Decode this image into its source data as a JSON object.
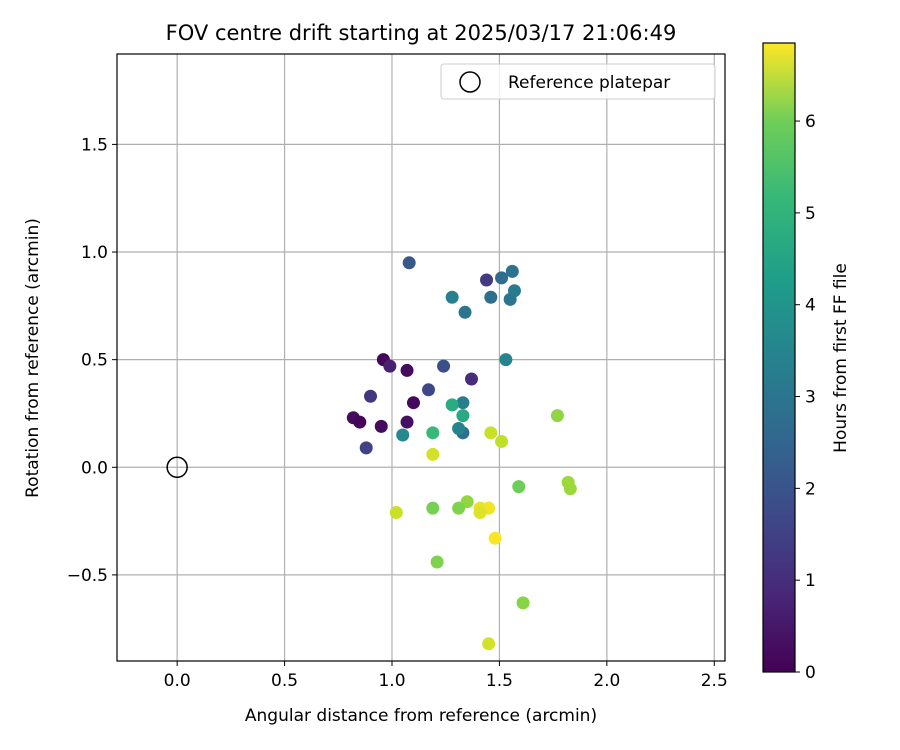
{
  "chart_data": {
    "type": "scatter",
    "title": "FOV centre drift starting at 2025/03/17 21:06:49",
    "xlabel": "Angular distance from reference (arcmin)",
    "ylabel": "Rotation from reference (arcmin)",
    "xlim": [
      -0.28,
      2.55
    ],
    "ylim": [
      -0.9,
      1.92
    ],
    "xticks": [
      "0.0",
      "0.5",
      "1.0",
      "1.5",
      "2.0",
      "2.5"
    ],
    "xtick_values": [
      0,
      0.5,
      1.0,
      1.5,
      2.0,
      2.5
    ],
    "yticks": [
      "−0.5",
      "0.0",
      "0.5",
      "1.0",
      "1.5"
    ],
    "ytick_values": [
      -0.5,
      0,
      0.5,
      1.0,
      1.5
    ],
    "grid": true,
    "legend_position": "top-right",
    "legend_label": "Reference platepar",
    "reference_point": {
      "x": 0.0,
      "y": 0.0
    },
    "colorbar": {
      "label": "Hours from first FF file",
      "min": 0,
      "max": 6.85,
      "ticks": [
        "0",
        "1",
        "2",
        "3",
        "4",
        "5",
        "6"
      ],
      "tick_values": [
        0,
        1,
        2,
        3,
        4,
        5,
        6
      ],
      "colormap": "viridis"
    },
    "points": [
      {
        "x": 0.96,
        "y": 0.5,
        "h": 0.1
      },
      {
        "x": 0.82,
        "y": 0.23,
        "h": 0.2
      },
      {
        "x": 0.85,
        "y": 0.21,
        "h": 0.1
      },
      {
        "x": 0.95,
        "y": 0.19,
        "h": 0.2
      },
      {
        "x": 1.07,
        "y": 0.45,
        "h": 0.2
      },
      {
        "x": 1.1,
        "y": 0.3,
        "h": 0.15
      },
      {
        "x": 1.07,
        "y": 0.21,
        "h": 0.3
      },
      {
        "x": 0.99,
        "y": 0.47,
        "h": 0.6
      },
      {
        "x": 0.9,
        "y": 0.33,
        "h": 1.1
      },
      {
        "x": 0.88,
        "y": 0.09,
        "h": 1.4
      },
      {
        "x": 1.37,
        "y": 0.41,
        "h": 0.9
      },
      {
        "x": 1.17,
        "y": 0.36,
        "h": 1.5
      },
      {
        "x": 1.24,
        "y": 0.47,
        "h": 1.7
      },
      {
        "x": 1.08,
        "y": 0.95,
        "h": 1.9
      },
      {
        "x": 1.44,
        "y": 0.87,
        "h": 1.2
      },
      {
        "x": 1.51,
        "y": 0.88,
        "h": 2.4
      },
      {
        "x": 1.56,
        "y": 0.91,
        "h": 2.6
      },
      {
        "x": 1.46,
        "y": 0.79,
        "h": 2.5
      },
      {
        "x": 1.57,
        "y": 0.82,
        "h": 2.8
      },
      {
        "x": 1.55,
        "y": 0.78,
        "h": 2.7
      },
      {
        "x": 1.28,
        "y": 0.79,
        "h": 3.0
      },
      {
        "x": 1.34,
        "y": 0.72,
        "h": 2.7
      },
      {
        "x": 1.53,
        "y": 0.5,
        "h": 3.1
      },
      {
        "x": 1.33,
        "y": 0.3,
        "h": 2.9
      },
      {
        "x": 1.33,
        "y": 0.16,
        "h": 2.5
      },
      {
        "x": 1.31,
        "y": 0.18,
        "h": 3.1
      },
      {
        "x": 1.05,
        "y": 0.15,
        "h": 3.2
      },
      {
        "x": 1.28,
        "y": 0.29,
        "h": 4.2
      },
      {
        "x": 1.33,
        "y": 0.24,
        "h": 4.1
      },
      {
        "x": 1.19,
        "y": 0.16,
        "h": 4.6
      },
      {
        "x": 1.77,
        "y": 0.24,
        "h": 5.7
      },
      {
        "x": 1.59,
        "y": -0.09,
        "h": 5.3
      },
      {
        "x": 1.82,
        "y": -0.07,
        "h": 5.8
      },
      {
        "x": 1.83,
        "y": -0.1,
        "h": 5.8
      },
      {
        "x": 1.35,
        "y": -0.16,
        "h": 5.7
      },
      {
        "x": 1.31,
        "y": -0.19,
        "h": 5.5
      },
      {
        "x": 1.19,
        "y": -0.19,
        "h": 5.4
      },
      {
        "x": 1.21,
        "y": -0.44,
        "h": 5.5
      },
      {
        "x": 1.61,
        "y": -0.63,
        "h": 5.6
      },
      {
        "x": 1.46,
        "y": 0.16,
        "h": 6.3
      },
      {
        "x": 1.51,
        "y": 0.12,
        "h": 6.2
      },
      {
        "x": 1.19,
        "y": 0.06,
        "h": 6.4
      },
      {
        "x": 1.02,
        "y": -0.21,
        "h": 6.3
      },
      {
        "x": 1.41,
        "y": -0.19,
        "h": 6.6
      },
      {
        "x": 1.45,
        "y": -0.19,
        "h": 6.7
      },
      {
        "x": 1.41,
        "y": -0.21,
        "h": 6.5
      },
      {
        "x": 1.48,
        "y": -0.33,
        "h": 6.8
      },
      {
        "x": 1.45,
        "y": -0.82,
        "h": 6.4
      }
    ]
  }
}
